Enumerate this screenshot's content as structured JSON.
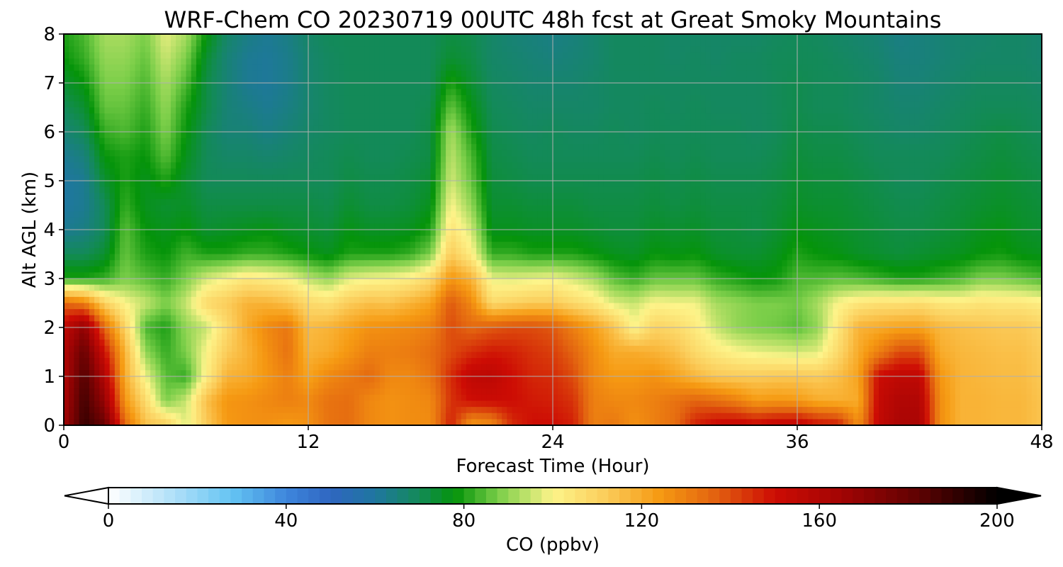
{
  "chart_data": {
    "type": "heatmap",
    "subtype": "filled-contour",
    "title": "WRF-Chem CO  20230719 00UTC 48h fcst at Great Smoky Mountains",
    "xlabel": "Forecast Time (Hour)",
    "ylabel": "Alt AGL (km)",
    "xlim": [
      0,
      48
    ],
    "ylim": [
      0,
      8
    ],
    "xticks": [
      0,
      12,
      24,
      36,
      48
    ],
    "yticks": [
      0,
      1,
      2,
      3,
      4,
      5,
      6,
      7,
      8
    ],
    "grid": true,
    "x_hours": [
      0,
      1,
      2,
      3,
      4,
      5,
      6,
      7,
      8,
      9,
      10,
      11,
      12,
      13,
      14,
      15,
      16,
      17,
      18,
      19,
      20,
      21,
      22,
      23,
      24,
      25,
      26,
      27,
      28,
      29,
      30,
      31,
      32,
      33,
      34,
      35,
      36,
      37,
      38,
      39,
      40,
      41,
      42,
      43,
      44,
      45,
      46,
      47,
      48
    ],
    "y_km": [
      0,
      0.5,
      1,
      1.5,
      2,
      2.5,
      3,
      3.5,
      4,
      4.5,
      5,
      5.5,
      6,
      6.5,
      7,
      7.5,
      8
    ],
    "z_ppbv": [
      [
        165,
        190,
        180,
        135,
        115,
        112,
        97,
        112,
        124,
        126,
        126,
        124,
        126,
        133,
        134,
        128,
        126,
        127,
        127,
        147,
        124,
        127,
        145,
        150,
        150,
        147,
        130,
        132,
        126,
        130,
        134,
        147,
        152,
        154,
        152,
        155,
        156,
        150,
        148,
        127,
        154,
        162,
        162,
        127,
        118,
        118,
        117,
        117,
        114
      ],
      [
        162,
        188,
        168,
        125,
        108,
        88,
        95,
        115,
        125,
        126,
        128,
        130,
        128,
        133,
        134,
        128,
        126,
        127,
        128,
        144,
        150,
        151,
        150,
        148,
        147,
        144,
        130,
        128,
        128,
        130,
        133,
        136,
        134,
        130,
        124,
        125,
        124,
        120,
        119,
        120,
        153,
        160,
        160,
        127,
        118,
        118,
        117,
        117,
        114
      ],
      [
        160,
        185,
        160,
        120,
        99,
        85,
        82,
        102,
        118,
        120,
        125,
        130,
        122,
        128,
        131,
        135,
        128,
        128,
        132,
        145,
        155,
        156,
        150,
        146,
        145,
        140,
        128,
        124,
        124,
        126,
        122,
        117,
        113,
        112,
        112,
        113,
        113,
        112,
        115,
        122,
        151,
        155,
        155,
        125,
        118,
        117,
        116,
        116,
        113
      ],
      [
        160,
        180,
        150,
        118,
        90,
        82,
        88,
        100,
        112,
        118,
        126,
        133,
        118,
        120,
        125,
        130,
        130,
        131,
        134,
        140,
        145,
        148,
        147,
        144,
        142,
        136,
        127,
        120,
        120,
        118,
        115,
        108,
        103,
        100,
        98,
        97,
        96,
        97,
        108,
        120,
        130,
        140,
        140,
        120,
        117,
        116,
        115,
        115,
        112
      ],
      [
        155,
        170,
        135,
        110,
        84,
        80,
        90,
        95,
        108,
        120,
        128,
        132,
        116,
        118,
        122,
        126,
        127,
        128,
        130,
        140,
        135,
        138,
        140,
        140,
        138,
        130,
        123,
        114,
        100,
        110,
        108,
        103,
        95,
        90,
        88,
        87,
        85,
        90,
        104,
        118,
        120,
        122,
        122,
        117,
        115,
        114,
        113,
        113,
        110
      ],
      [
        135,
        130,
        110,
        100,
        95,
        88,
        95,
        108,
        112,
        118,
        118,
        115,
        108,
        106,
        112,
        115,
        114,
        118,
        122,
        138,
        128,
        108,
        110,
        112,
        112,
        108,
        104,
        97,
        95,
        100,
        99,
        99,
        92,
        90,
        88,
        88,
        87,
        92,
        100,
        104,
        106,
        106,
        107,
        104,
        103,
        105,
        104,
        104,
        102
      ],
      [
        80,
        80,
        82,
        88,
        85,
        82,
        88,
        96,
        100,
        104,
        102,
        100,
        94,
        90,
        97,
        99,
        100,
        102,
        108,
        125,
        118,
        98,
        97,
        98,
        99,
        96,
        92,
        85,
        82,
        86,
        86,
        86,
        82,
        80,
        78,
        79,
        84,
        84,
        85,
        84,
        82,
        80,
        80,
        82,
        84,
        88,
        88,
        86,
        84
      ],
      [
        70,
        70,
        74,
        86,
        80,
        78,
        83,
        80,
        80,
        82,
        82,
        80,
        78,
        76,
        80,
        80,
        80,
        82,
        88,
        112,
        102,
        82,
        82,
        80,
        80,
        80,
        78,
        76,
        75,
        78,
        77,
        78,
        75,
        74,
        74,
        76,
        80,
        78,
        77,
        75,
        74,
        73,
        74,
        75,
        76,
        78,
        79,
        77,
        76
      ],
      [
        62,
        64,
        70,
        85,
        78,
        76,
        78,
        74,
        75,
        76,
        77,
        75,
        74,
        73,
        77,
        75,
        75,
        76,
        80,
        105,
        96,
        76,
        76,
        75,
        75,
        75,
        74,
        73,
        73,
        75,
        74,
        75,
        73,
        73,
        72,
        74,
        77,
        76,
        75,
        74,
        73,
        72,
        72,
        73,
        74,
        76,
        77,
        75,
        74
      ],
      [
        60,
        62,
        70,
        82,
        76,
        74,
        75,
        72,
        72,
        72,
        72,
        72,
        72,
        71,
        74,
        72,
        72,
        73,
        76,
        100,
        90,
        74,
        74,
        73,
        73,
        73,
        72,
        72,
        72,
        73,
        72,
        73,
        72,
        72,
        72,
        73,
        75,
        74,
        74,
        73,
        72,
        71,
        71,
        72,
        73,
        74,
        75,
        74,
        73
      ],
      [
        60,
        62,
        74,
        80,
        76,
        80,
        74,
        70,
        70,
        70,
        70,
        70,
        70,
        70,
        72,
        71,
        71,
        72,
        74,
        96,
        86,
        73,
        72,
        71,
        71,
        71,
        71,
        71,
        71,
        72,
        71,
        72,
        71,
        71,
        71,
        72,
        74,
        73,
        73,
        72,
        71,
        70,
        70,
        71,
        72,
        73,
        74,
        73,
        72
      ],
      [
        62,
        65,
        78,
        80,
        78,
        85,
        76,
        70,
        68,
        68,
        67,
        68,
        69,
        70,
        71,
        70,
        70,
        71,
        72,
        94,
        84,
        72,
        71,
        70,
        70,
        70,
        70,
        70,
        70,
        71,
        70,
        71,
        70,
        70,
        70,
        71,
        73,
        72,
        72,
        71,
        70,
        70,
        70,
        70,
        71,
        72,
        73,
        72,
        71
      ],
      [
        66,
        70,
        82,
        84,
        80,
        88,
        78,
        70,
        66,
        66,
        64,
        66,
        68,
        69,
        70,
        70,
        70,
        70,
        72,
        92,
        80,
        71,
        70,
        69,
        70,
        69,
        69,
        70,
        69,
        70,
        70,
        70,
        70,
        70,
        69,
        70,
        72,
        71,
        71,
        70,
        69,
        68,
        68,
        69,
        70,
        71,
        72,
        71,
        70
      ],
      [
        70,
        74,
        86,
        86,
        82,
        90,
        80,
        72,
        66,
        64,
        62,
        64,
        67,
        69,
        70,
        70,
        70,
        70,
        71,
        86,
        77,
        70,
        69,
        68,
        68,
        68,
        68,
        69,
        69,
        70,
        69,
        70,
        69,
        69,
        69,
        70,
        71,
        70,
        70,
        69,
        68,
        67,
        67,
        68,
        69,
        70,
        70,
        70,
        69
      ],
      [
        74,
        78,
        88,
        88,
        84,
        92,
        84,
        72,
        66,
        62,
        61,
        63,
        67,
        69,
        70,
        70,
        70,
        70,
        70,
        80,
        74,
        69,
        68,
        67,
        67,
        67,
        68,
        69,
        69,
        69,
        69,
        69,
        69,
        69,
        69,
        70,
        71,
        70,
        70,
        69,
        68,
        66,
        66,
        67,
        68,
        69,
        69,
        69,
        68
      ],
      [
        78,
        82,
        90,
        90,
        86,
        95,
        88,
        74,
        66,
        62,
        61,
        63,
        67,
        69,
        70,
        70,
        70,
        70,
        70,
        74,
        72,
        68,
        67,
        66,
        65,
        66,
        67,
        69,
        69,
        69,
        68,
        69,
        68,
        69,
        69,
        70,
        70,
        70,
        69,
        68,
        67,
        65,
        65,
        66,
        67,
        68,
        68,
        68,
        67
      ],
      [
        80,
        84,
        92,
        92,
        88,
        98,
        92,
        78,
        68,
        64,
        62,
        64,
        68,
        70,
        70,
        70,
        70,
        70,
        70,
        72,
        71,
        68,
        66,
        65,
        64,
        65,
        67,
        69,
        69,
        69,
        68,
        68,
        68,
        68,
        68,
        69,
        70,
        69,
        68,
        67,
        66,
        64,
        65,
        66,
        67,
        67,
        68,
        68,
        67
      ]
    ],
    "colorbar": {
      "label": "CO  (ppbv)",
      "ticks": [
        0,
        40,
        80,
        120,
        160,
        200
      ],
      "min": 0,
      "max": 200,
      "extend": "both",
      "colors": [
        {
          "v": 0,
          "c": "#ffffff"
        },
        {
          "v": 16,
          "c": "#a8ddf8"
        },
        {
          "v": 28,
          "c": "#63c3f2"
        },
        {
          "v": 40,
          "c": "#3e86dc"
        },
        {
          "v": 50,
          "c": "#2f66c0"
        },
        {
          "v": 60,
          "c": "#1f76a0"
        },
        {
          "v": 70,
          "c": "#138a58"
        },
        {
          "v": 78,
          "c": "#05940a"
        },
        {
          "v": 88,
          "c": "#7dcf4a"
        },
        {
          "v": 100,
          "c": "#fdf48a"
        },
        {
          "v": 112,
          "c": "#fbcc5a"
        },
        {
          "v": 124,
          "c": "#f69a12"
        },
        {
          "v": 136,
          "c": "#e36510"
        },
        {
          "v": 150,
          "c": "#cd0c04"
        },
        {
          "v": 165,
          "c": "#a20404"
        },
        {
          "v": 182,
          "c": "#600202"
        },
        {
          "v": 200,
          "c": "#000000"
        }
      ]
    }
  }
}
